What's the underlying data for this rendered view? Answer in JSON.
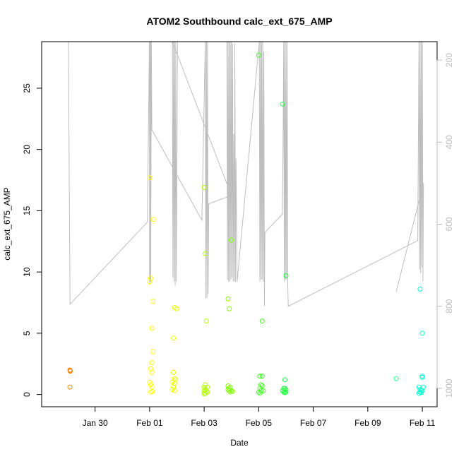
{
  "chart_data": {
    "type": "scatter",
    "title": "ATOM2 Southbound calc_ext_675_AMP",
    "xlabel": "Date",
    "ylabel": "calc_ext_675_AMP",
    "xlim": [
      "2021-01-28T01:00",
      "2021-02-11T13:00"
    ],
    "ylim": [
      -1,
      28.8
    ],
    "y2lim": [
      1045,
      155
    ],
    "x_ticks": [
      {
        "date": "2021-01-30",
        "label": "Jan 30"
      },
      {
        "date": "2021-02-01",
        "label": "Feb 01"
      },
      {
        "date": "2021-02-03",
        "label": "Feb 03"
      },
      {
        "date": "2021-02-05",
        "label": "Feb 05"
      },
      {
        "date": "2021-02-07",
        "label": "Feb 07"
      },
      {
        "date": "2021-02-09",
        "label": "Feb 09"
      },
      {
        "date": "2021-02-11",
        "label": "Feb 11"
      }
    ],
    "y_ticks": [
      0,
      5,
      10,
      15,
      20,
      25
    ],
    "y2_ticks": [
      200,
      400,
      600,
      800,
      1000
    ],
    "grid": false,
    "legend": "none",
    "points": [
      {
        "x": "2021-01-29T01:50",
        "y": 2.0,
        "color": "#ff8000"
      },
      {
        "x": "2021-01-29T02:00",
        "y": 1.95,
        "color": "#ff8000"
      },
      {
        "x": "2021-01-29T02:10",
        "y": 1.9,
        "color": "#ff8000"
      },
      {
        "x": "2021-01-29T01:50",
        "y": 0.6,
        "color": "#ff8000"
      },
      {
        "x": "2021-02-01T00:10",
        "y": 17.7,
        "color": "#ffff00"
      },
      {
        "x": "2021-02-01T03:20",
        "y": 14.3,
        "color": "#ffff00"
      },
      {
        "x": "2021-02-01T01:00",
        "y": 9.5,
        "color": "#ffff00"
      },
      {
        "x": "2021-02-01T00:00",
        "y": 9.2,
        "color": "#ffff00"
      },
      {
        "x": "2021-02-01T03:00",
        "y": 7.6,
        "color": "#ffff00"
      },
      {
        "x": "2021-02-01T02:00",
        "y": 5.4,
        "color": "#ffff00"
      },
      {
        "x": "2021-02-01T03:00",
        "y": 3.5,
        "color": "#ffff00"
      },
      {
        "x": "2021-02-01T02:00",
        "y": 2.6,
        "color": "#ffff00"
      },
      {
        "x": "2021-02-01T01:00",
        "y": 2.1,
        "color": "#ffff00"
      },
      {
        "x": "2021-02-01T02:00",
        "y": 1.8,
        "color": "#ffff00"
      },
      {
        "x": "2021-02-01T00:00",
        "y": 1.0,
        "color": "#ffff00"
      },
      {
        "x": "2021-02-01T01:00",
        "y": 0.8,
        "color": "#ffff00"
      },
      {
        "x": "2021-02-01T02:00",
        "y": 0.6,
        "color": "#ffff00"
      },
      {
        "x": "2021-02-01T01:00",
        "y": 0.2,
        "color": "#ffff00"
      },
      {
        "x": "2021-02-01T02:30",
        "y": 0.25,
        "color": "#ffff00"
      },
      {
        "x": "2021-02-01T22:00",
        "y": 7.1,
        "color": "#e8ff00"
      },
      {
        "x": "2021-02-01T23:50",
        "y": 7.0,
        "color": "#e8ff00"
      },
      {
        "x": "2021-02-01T21:00",
        "y": 4.6,
        "color": "#e8ff00"
      },
      {
        "x": "2021-02-01T21:00",
        "y": 1.8,
        "color": "#e8ff00"
      },
      {
        "x": "2021-02-01T22:00",
        "y": 1.3,
        "color": "#e8ff00"
      },
      {
        "x": "2021-02-01T23:00",
        "y": 1.2,
        "color": "#e8ff00"
      },
      {
        "x": "2021-02-01T20:00",
        "y": 1.0,
        "color": "#e8ff00"
      },
      {
        "x": "2021-02-01T22:00",
        "y": 0.9,
        "color": "#e8ff00"
      },
      {
        "x": "2021-02-01T21:00",
        "y": 0.6,
        "color": "#e8ff00"
      },
      {
        "x": "2021-02-01T20:00",
        "y": 0.4,
        "color": "#e8ff00"
      },
      {
        "x": "2021-02-01T22:00",
        "y": 0.3,
        "color": "#e8ff00"
      },
      {
        "x": "2021-02-03T00:00",
        "y": 16.9,
        "color": "#b3ff00"
      },
      {
        "x": "2021-02-03T01:00",
        "y": 11.5,
        "color": "#b3ff00"
      },
      {
        "x": "2021-02-03T02:00",
        "y": 6.0,
        "color": "#b3ff00"
      },
      {
        "x": "2021-02-03T01:00",
        "y": 0.8,
        "color": "#b3ff00"
      },
      {
        "x": "2021-02-03T00:00",
        "y": 0.6,
        "color": "#b3ff00"
      },
      {
        "x": "2021-02-03T03:00",
        "y": 0.6,
        "color": "#b3ff00"
      },
      {
        "x": "2021-02-03T01:00",
        "y": 0.4,
        "color": "#b3ff00"
      },
      {
        "x": "2021-02-03T00:00",
        "y": 0.3,
        "color": "#b3ff00"
      },
      {
        "x": "2021-02-03T02:00",
        "y": 0.25,
        "color": "#b3ff00"
      },
      {
        "x": "2021-02-03T03:00",
        "y": 0.2,
        "color": "#b3ff00"
      },
      {
        "x": "2021-02-03T01:00",
        "y": 0.1,
        "color": "#b3ff00"
      },
      {
        "x": "2021-02-03T00:00",
        "y": 0.05,
        "color": "#b3ff00"
      },
      {
        "x": "2021-02-03T21:00",
        "y": 7.8,
        "color": "#80ff00"
      },
      {
        "x": "2021-02-03T23:50",
        "y": 12.6,
        "color": "#80ff00"
      },
      {
        "x": "2021-02-03T22:00",
        "y": 7.0,
        "color": "#80ff00"
      },
      {
        "x": "2021-02-03T21:00",
        "y": 0.7,
        "color": "#80ff00"
      },
      {
        "x": "2021-02-03T23:00",
        "y": 0.6,
        "color": "#80ff00"
      },
      {
        "x": "2021-02-03T22:00",
        "y": 0.5,
        "color": "#80ff00"
      },
      {
        "x": "2021-02-03T21:00",
        "y": 0.4,
        "color": "#80ff00"
      },
      {
        "x": "2021-02-04T00:00",
        "y": 0.3,
        "color": "#80ff00"
      },
      {
        "x": "2021-02-03T22:00",
        "y": 0.3,
        "color": "#80ff00"
      },
      {
        "x": "2021-02-03T23:00",
        "y": 0.2,
        "color": "#80ff00"
      },
      {
        "x": "2021-02-04T01:00",
        "y": 0.25,
        "color": "#80ff00"
      },
      {
        "x": "2021-02-05T00:00",
        "y": 27.7,
        "color": "#40ff20"
      },
      {
        "x": "2021-02-05T03:00",
        "y": 6.0,
        "color": "#40ff20"
      },
      {
        "x": "2021-02-05T01:00",
        "y": 1.5,
        "color": "#40ff20"
      },
      {
        "x": "2021-02-05T03:00",
        "y": 1.5,
        "color": "#40ff20"
      },
      {
        "x": "2021-02-05T02:00",
        "y": 0.8,
        "color": "#40ff20"
      },
      {
        "x": "2021-02-05T03:00",
        "y": 0.7,
        "color": "#40ff20"
      },
      {
        "x": "2021-02-05T01:00",
        "y": 0.5,
        "color": "#40ff20"
      },
      {
        "x": "2021-02-05T04:00",
        "y": 0.3,
        "color": "#40ff20"
      },
      {
        "x": "2021-02-05T02:00",
        "y": 0.3,
        "color": "#40ff20"
      },
      {
        "x": "2021-02-05T00:00",
        "y": 0.2,
        "color": "#40ff20"
      },
      {
        "x": "2021-02-05T01:00",
        "y": 0.1,
        "color": "#40ff20"
      },
      {
        "x": "2021-02-05T21:00",
        "y": 23.7,
        "color": "#20ff40"
      },
      {
        "x": "2021-02-06T00:00",
        "y": 9.7,
        "color": "#20ff40"
      },
      {
        "x": "2021-02-05T23:00",
        "y": 1.2,
        "color": "#20ff40"
      },
      {
        "x": "2021-02-05T22:00",
        "y": 0.5,
        "color": "#20ff40"
      },
      {
        "x": "2021-02-05T23:00",
        "y": 0.5,
        "color": "#20ff40"
      },
      {
        "x": "2021-02-06T00:00",
        "y": 0.4,
        "color": "#20ff40"
      },
      {
        "x": "2021-02-05T21:00",
        "y": 0.3,
        "color": "#20ff40"
      },
      {
        "x": "2021-02-05T22:00",
        "y": 0.2,
        "color": "#20ff40"
      },
      {
        "x": "2021-02-06T00:00",
        "y": 0.2,
        "color": "#20ff40"
      },
      {
        "x": "2021-02-05T23:00",
        "y": 0.15,
        "color": "#20ff40"
      },
      {
        "x": "2021-02-10T01:00",
        "y": 1.3,
        "color": "#20ff90"
      },
      {
        "x": "2021-02-10T22:00",
        "y": 8.6,
        "color": "#00ffd0"
      },
      {
        "x": "2021-02-11T00:00",
        "y": 5.0,
        "color": "#00ffd0"
      },
      {
        "x": "2021-02-10T23:50",
        "y": 1.5,
        "color": "#00ffd0"
      },
      {
        "x": "2021-02-11T00:00",
        "y": 1.4,
        "color": "#00ffd0"
      },
      {
        "x": "2021-02-10T21:00",
        "y": 0.6,
        "color": "#00ffd0"
      },
      {
        "x": "2021-02-11T01:00",
        "y": 0.6,
        "color": "#00ffd0"
      },
      {
        "x": "2021-02-10T22:00",
        "y": 0.4,
        "color": "#00ffd0"
      },
      {
        "x": "2021-02-10T23:00",
        "y": 0.35,
        "color": "#00ffd0"
      },
      {
        "x": "2021-02-11T00:00",
        "y": 0.3,
        "color": "#00ffd0"
      },
      {
        "x": "2021-02-10T22:00",
        "y": 0.2,
        "color": "#00ffd0"
      },
      {
        "x": "2021-02-10T23:00",
        "y": 0.15,
        "color": "#00ffd0"
      },
      {
        "x": "2021-02-10T21:00",
        "y": 0.1,
        "color": "#00ffd0"
      }
    ],
    "depth_line": {
      "color": "#bebebe",
      "points": [
        [
          "2021-01-29T00:30",
          155
        ],
        [
          "2021-01-29T02:00",
          795
        ],
        [
          "2021-01-31T22:00",
          595
        ],
        [
          "2021-01-31T23:50",
          155
        ],
        [
          "2021-02-01T00:00",
          740
        ],
        [
          "2021-02-01T00:10",
          155
        ],
        [
          "2021-02-01T00:20",
          745
        ],
        [
          "2021-02-01T00:30",
          155
        ],
        [
          "2021-02-01T00:40",
          735
        ],
        [
          "2021-02-01T00:50",
          155
        ],
        [
          "2021-02-01T01:00",
          740
        ],
        [
          "2021-02-01T01:00",
          700
        ],
        [
          "2021-02-01T01:30",
          155
        ],
        [
          "2021-02-01T02:00",
          370
        ],
        [
          "2021-02-02T22:00",
          590
        ],
        [
          "2021-02-03T01:00",
          155
        ],
        [
          "2021-02-03T01:30",
          780
        ],
        [
          "2021-02-03T02:00",
          155
        ],
        [
          "2021-02-03T02:30",
          780
        ],
        [
          "2021-02-03T03:00",
          155
        ],
        [
          "2021-02-03T03:30",
          770
        ],
        [
          "2021-02-03T04:00",
          550
        ],
        [
          "2021-02-04T00:00",
          530
        ],
        [
          "2021-02-01T20:00",
          155
        ],
        [
          "2021-02-01T20:30",
          730
        ],
        [
          "2021-02-01T21:00",
          155
        ],
        [
          "2021-02-01T21:30",
          740
        ],
        [
          "2021-02-01T22:00",
          155
        ],
        [
          "2021-02-01T22:30",
          750
        ],
        [
          "2021-02-01T23:00",
          155
        ],
        [
          "2021-02-01T23:30",
          740
        ],
        [
          "2021-02-01T23:59",
          480
        ],
        [
          "2021-02-02T00:30",
          155
        ],
        [
          "2021-02-03T20:00",
          155
        ],
        [
          "2021-02-03T20:30",
          735
        ],
        [
          "2021-02-03T21:00",
          155
        ],
        [
          "2021-02-03T21:30",
          740
        ],
        [
          "2021-02-03T22:00",
          155
        ],
        [
          "2021-02-03T22:30",
          740
        ],
        [
          "2021-02-03T23:00",
          155
        ],
        [
          "2021-02-03T23:30",
          735
        ],
        [
          "2021-02-04T00:00",
          155
        ],
        [
          "2021-02-04T00:30",
          730
        ],
        [
          "2021-02-04T01:00",
          160
        ],
        [
          "2021-02-04T01:30",
          740
        ],
        [
          "2021-02-04T02:00",
          380
        ],
        [
          "2021-02-04T02:30",
          740
        ],
        [
          "2021-02-04T03:00",
          160
        ],
        [
          "2021-02-04T03:30",
          740
        ],
        [
          "2021-02-04T04:00",
          440
        ],
        [
          "2021-02-04T05:00",
          740
        ],
        [
          "2021-02-05T00:30",
          155
        ],
        [
          "2021-02-05T01:00",
          740
        ],
        [
          "2021-02-05T01:30",
          155
        ],
        [
          "2021-02-05T02:00",
          735
        ],
        [
          "2021-02-05T02:30",
          155
        ],
        [
          "2021-02-05T03:00",
          735
        ],
        [
          "2021-02-05T03:30",
          155
        ],
        [
          "2021-02-05T04:00",
          740
        ],
        [
          "2021-02-05T04:30",
          180
        ],
        [
          "2021-02-05T05:00",
          800
        ],
        [
          "2021-02-05T05:30",
          620
        ],
        [
          "2021-02-05T21:00",
          575
        ],
        [
          "2021-02-05T22:00",
          155
        ],
        [
          "2021-02-05T22:30",
          740
        ],
        [
          "2021-02-05T23:00",
          155
        ],
        [
          "2021-02-05T23:30",
          735
        ],
        [
          "2021-02-06T00:00",
          155
        ],
        [
          "2021-02-06T00:30",
          735
        ],
        [
          "2021-02-06T01:00",
          155
        ],
        [
          "2021-02-06T01:30",
          740
        ],
        [
          "2021-02-06T01:59",
          800
        ],
        [
          "2021-02-06T02:00",
          800
        ],
        [
          "2021-02-10T20:00",
          640
        ],
        [
          "2021-02-10T21:00",
          155
        ],
        [
          "2021-02-10T21:30",
          710
        ],
        [
          "2021-02-10T22:00",
          155
        ],
        [
          "2021-02-10T22:30",
          720
        ],
        [
          "2021-02-10T23:00",
          155
        ],
        [
          "2021-02-10T23:30",
          705
        ],
        [
          "2021-02-11T00:00",
          155
        ],
        [
          "2021-02-11T00:30",
          740
        ],
        [
          "2021-02-11T01:00",
          500
        ],
        [
          "2021-02-10T01:00",
          765
        ]
      ]
    }
  }
}
